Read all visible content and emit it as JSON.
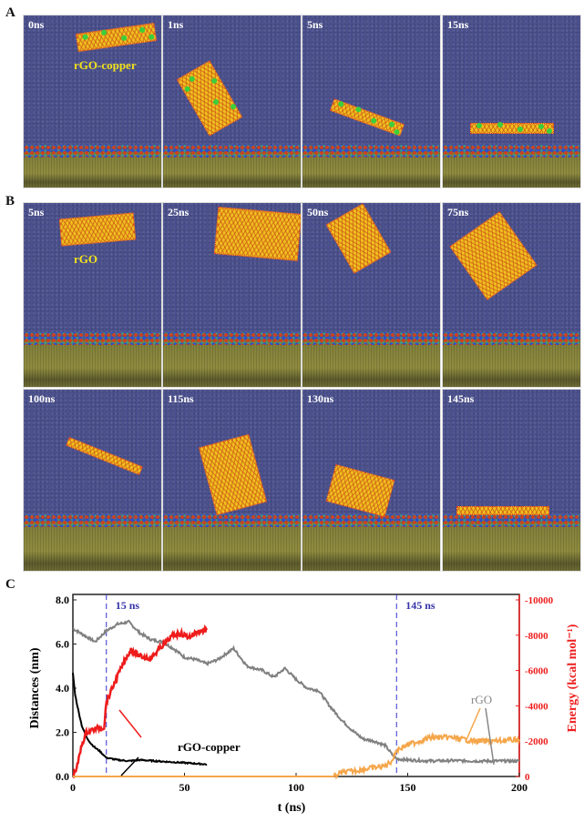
{
  "panels": {
    "A": {
      "label": "A",
      "times": [
        "0ns",
        "1ns",
        "5ns",
        "15ns"
      ],
      "molecule_label": "rGO-copper"
    },
    "B": {
      "label": "B",
      "times_row1": [
        "5ns",
        "25ns",
        "50ns",
        "75ns"
      ],
      "times_row2": [
        "100ns",
        "115ns",
        "130ns",
        "145ns"
      ],
      "molecule_label": "rGO"
    },
    "C": {
      "label": "C"
    }
  },
  "colors": {
    "water": "#4c5290",
    "lipid": "#8f8c40",
    "sheet": "#f0c020",
    "copper": "#3ccf3c",
    "rgo_dist": "#808080",
    "rgo_copper_dist": "#000000",
    "rgo_copper_energy": "#ee1c1c",
    "rgo_energy": "#f5a64a",
    "vline": "#3333cc"
  },
  "chart_data": {
    "type": "line",
    "xlabel": "t (ns)",
    "ylabel": "Distances (nm)",
    "y2label": "Energy (kcal mol⁻¹)",
    "xlim": [
      0,
      200
    ],
    "ylim": [
      0,
      8
    ],
    "y2lim": [
      0,
      -10000
    ],
    "xticks": [
      "0",
      "50",
      "100",
      "150",
      "200"
    ],
    "yticks": [
      "0.0",
      "2.0",
      "4.0",
      "6.0",
      "8.0"
    ],
    "y2ticks": [
      "0",
      "-2000",
      "-4000",
      "-6000",
      "-8000",
      "-10000"
    ],
    "vlines": [
      {
        "x": 15,
        "label": "15 ns"
      },
      {
        "x": 145,
        "label": "145 ns"
      }
    ],
    "annotations": [
      "rGO-copper",
      "rGO"
    ],
    "series": [
      {
        "name": "rGO distance",
        "axis": "left",
        "color": "#808080",
        "x": [
          0,
          5,
          10,
          15,
          20,
          25,
          30,
          35,
          40,
          45,
          50,
          55,
          60,
          65,
          72,
          78,
          85,
          90,
          95,
          100,
          105,
          110,
          115,
          120,
          125,
          130,
          135,
          140,
          143,
          145,
          150,
          160,
          170,
          180,
          190,
          200
        ],
        "y": [
          6.7,
          6.4,
          6.1,
          6.6,
          6.9,
          7.0,
          6.5,
          6.2,
          6.1,
          5.8,
          5.4,
          5.3,
          5.1,
          5.3,
          5.8,
          5.0,
          4.8,
          4.5,
          4.9,
          4.4,
          4.0,
          3.9,
          3.2,
          2.6,
          2.1,
          1.7,
          1.6,
          1.4,
          1.0,
          0.8,
          0.75,
          0.7,
          0.72,
          0.7,
          0.7,
          0.7
        ]
      },
      {
        "name": "rGO-copper distance",
        "axis": "left",
        "color": "#000000",
        "x": [
          0,
          1,
          2,
          4,
          6,
          8,
          10,
          12,
          15,
          20,
          25,
          30,
          40,
          50,
          60
        ],
        "y": [
          4.7,
          3.7,
          3.2,
          2.3,
          1.8,
          1.5,
          1.3,
          1.15,
          0.85,
          0.75,
          0.7,
          0.75,
          0.68,
          0.62,
          0.55
        ]
      },
      {
        "name": "rGO-copper energy",
        "axis": "right",
        "color": "#ee1c1c",
        "x": [
          0,
          2,
          4,
          6,
          10,
          14,
          15,
          17,
          20,
          23,
          26,
          30,
          35,
          40,
          45,
          48,
          52,
          56,
          60
        ],
        "y": [
          0,
          -600,
          -1800,
          -2500,
          -2700,
          -2800,
          -4200,
          -4800,
          -5700,
          -6500,
          -7200,
          -6800,
          -6700,
          -7400,
          -8000,
          -8100,
          -7900,
          -8200,
          -8300
        ]
      },
      {
        "name": "rGO energy",
        "axis": "right",
        "color": "#f5a64a",
        "x": [
          0,
          117,
          120,
          125,
          130,
          135,
          140,
          143,
          145,
          150,
          155,
          160,
          170,
          180,
          190,
          200
        ],
        "y": [
          0,
          0,
          -200,
          -300,
          -400,
          -500,
          -600,
          -900,
          -1500,
          -1800,
          -2000,
          -2200,
          -2200,
          -2000,
          -2000,
          -2100
        ]
      }
    ]
  }
}
